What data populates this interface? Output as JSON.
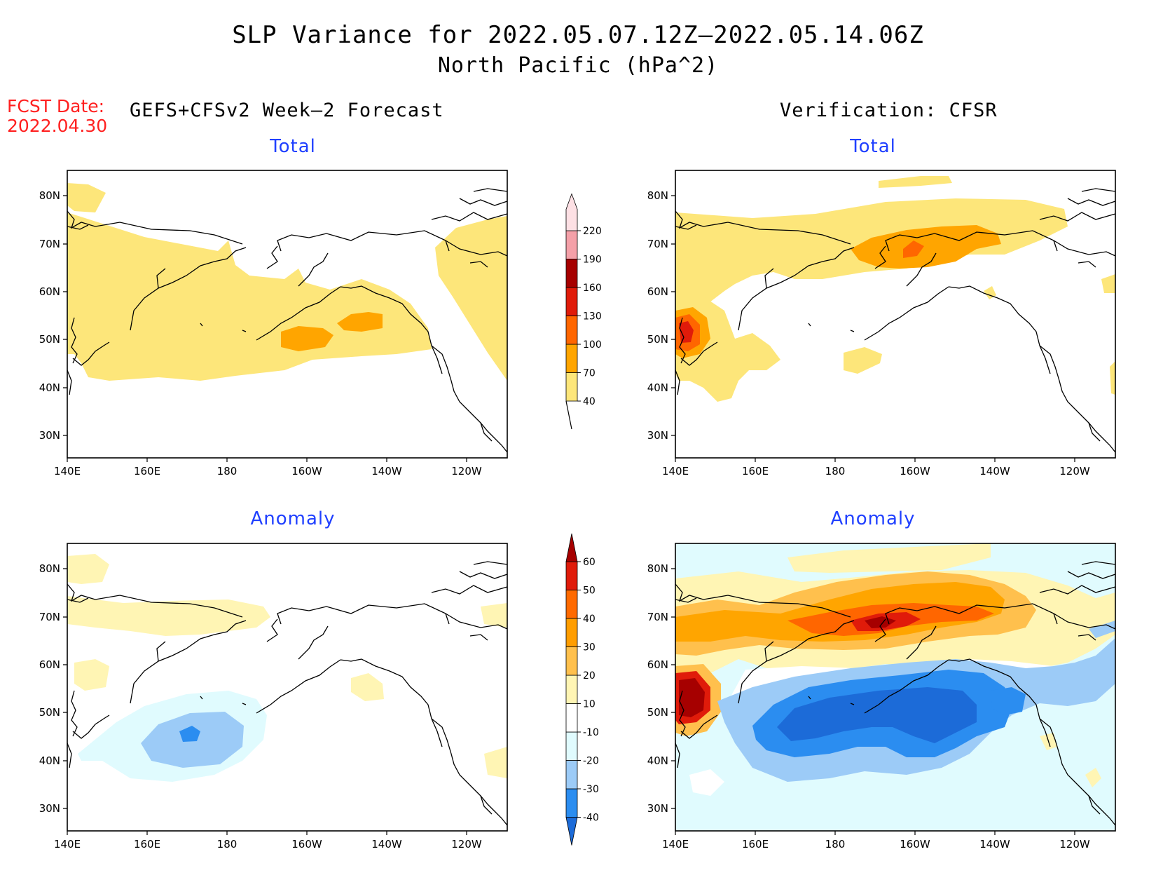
{
  "title": {
    "line1": "SLP Variance for 2022.05.07.12Z–2022.05.14.06Z",
    "line2": "North Pacific (hPa^2)"
  },
  "fcst": {
    "label": "FCST Date:",
    "date": "2022.04.30"
  },
  "columns": {
    "left": "GEFS+CFSv2 Week–2 Forecast",
    "right": "Verification: CFSR"
  },
  "panels": {
    "total_label": "Total",
    "anomaly_label": "Anomaly"
  },
  "axes": {
    "lon_ticks": [
      "140E",
      "160E",
      "180",
      "160W",
      "140W",
      "120W"
    ],
    "lat_ticks": [
      "80N",
      "70N",
      "60N",
      "50N",
      "40N",
      "30N"
    ]
  },
  "colorbars": {
    "total": {
      "levels": [
        "40",
        "70",
        "100",
        "130",
        "160",
        "190",
        "220"
      ],
      "colors": [
        "#fde67a",
        "#ffa500",
        "#ff6600",
        "#e01b0a",
        "#a60000",
        "#f4a0a8",
        "#fde0e4"
      ]
    },
    "anomaly": {
      "levels": [
        "-40",
        "-30",
        "-20",
        "-10",
        "10",
        "20",
        "30",
        "40",
        "50",
        "60"
      ],
      "colors": [
        "#1c6bd8",
        "#2b8df0",
        "#9ccbf7",
        "#e0fbfe",
        "#ffffff",
        "#fff5b4",
        "#ffc04d",
        "#ff9d00",
        "#ff6a00",
        "#e01b0a",
        "#a60000"
      ]
    }
  },
  "map_colors": {
    "light_yellow": "#fde67a",
    "orange": "#ffa500",
    "dark_orange": "#ff6600",
    "red": "#e01b0a",
    "dark_red": "#a60000",
    "pale_yellow": "#fff5b4",
    "light_orange": "#ffc04d",
    "pale_cyan": "#e0fbfe",
    "light_blue": "#9ccbf7",
    "mid_blue": "#2b8df0",
    "dark_blue": "#1c6bd8"
  }
}
